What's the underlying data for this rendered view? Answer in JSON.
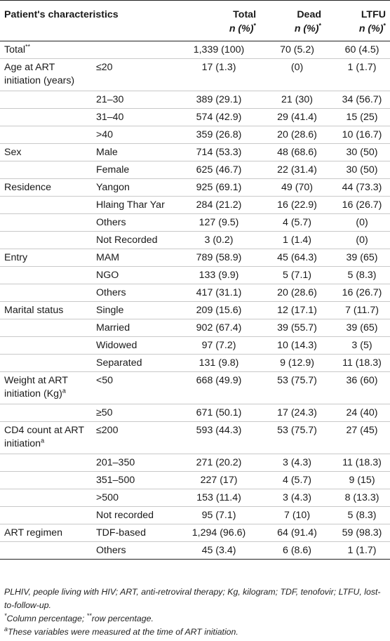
{
  "headers": {
    "characteristics": "Patient's characteristics",
    "total": "Total",
    "dead": "Dead",
    "ltfu": "LTFU",
    "npct": "n (%)",
    "npct_mark": "*"
  },
  "rows": [
    {
      "group": "Total",
      "group_sup": "**",
      "sub": "",
      "total": "1,339 (100)",
      "dead": "70 (5.2)",
      "ltfu": "60 (4.5)"
    },
    {
      "group": "Age at ART initiation (years)",
      "sub": "≤20",
      "total": "17 (1.3)",
      "dead": "(0)",
      "ltfu": "1 (1.7)"
    },
    {
      "group": "",
      "sub": "21–30",
      "total": "389 (29.1)",
      "dead": "21 (30)",
      "ltfu": "34 (56.7)"
    },
    {
      "group": "",
      "sub": "31–40",
      "total": "574 (42.9)",
      "dead": "29 (41.4)",
      "ltfu": "15 (25)"
    },
    {
      "group": "",
      "sub": ">40",
      "total": "359 (26.8)",
      "dead": "20 (28.6)",
      "ltfu": "10 (16.7)"
    },
    {
      "group": "Sex",
      "sub": "Male",
      "total": "714 (53.3)",
      "dead": "48 (68.6)",
      "ltfu": "30 (50)"
    },
    {
      "group": "",
      "sub": "Female",
      "total": "625 (46.7)",
      "dead": "22 (31.4)",
      "ltfu": "30 (50)"
    },
    {
      "group": "Residence",
      "sub": "Yangon",
      "total": "925 (69.1)",
      "dead": "49 (70)",
      "ltfu": "44 (73.3)"
    },
    {
      "group": "",
      "sub": "Hlaing Thar Yar",
      "total": "284 (21.2)",
      "dead": "16 (22.9)",
      "ltfu": "16 (26.7)"
    },
    {
      "group": "",
      "sub": "Others",
      "total": "127 (9.5)",
      "dead": "4 (5.7)",
      "ltfu": "(0)"
    },
    {
      "group": "",
      "sub": "Not Recorded",
      "total": "3 (0.2)",
      "dead": "1 (1.4)",
      "ltfu": "(0)"
    },
    {
      "group": "Entry",
      "sub": "MAM",
      "total": "789 (58.9)",
      "dead": "45 (64.3)",
      "ltfu": "39 (65)"
    },
    {
      "group": "",
      "sub": "NGO",
      "total": "133 (9.9)",
      "dead": "5 (7.1)",
      "ltfu": "5 (8.3)"
    },
    {
      "group": "",
      "sub": "Others",
      "total": "417 (31.1)",
      "dead": "20 (28.6)",
      "ltfu": "16 (26.7)"
    },
    {
      "group": "Marital status",
      "sub": "Single",
      "total": "209 (15.6)",
      "dead": "12 (17.1)",
      "ltfu": "7 (11.7)"
    },
    {
      "group": "",
      "sub": "Married",
      "total": "902 (67.4)",
      "dead": "39 (55.7)",
      "ltfu": "39 (65)"
    },
    {
      "group": "",
      "sub": "Widowed",
      "total": "97 (7.2)",
      "dead": "10 (14.3)",
      "ltfu": "3 (5)"
    },
    {
      "group": "",
      "sub": "Separated",
      "total": "131 (9.8)",
      "dead": "9 (12.9)",
      "ltfu": "11 (18.3)"
    },
    {
      "group": "Weight at ART initiation (Kg)",
      "group_sup": "a",
      "sub": "<50",
      "total": "668 (49.9)",
      "dead": "53 (75.7)",
      "ltfu": "36 (60)"
    },
    {
      "group": "",
      "sub": "≥50",
      "total": "671 (50.1)",
      "dead": "17 (24.3)",
      "ltfu": "24 (40)"
    },
    {
      "group": "CD4 count at ART initiation",
      "group_sup": "a",
      "sub": "≤200",
      "total": "593 (44.3)",
      "dead": "53 (75.7)",
      "ltfu": "27 (45)"
    },
    {
      "group": "",
      "sub": "201–350",
      "total": "271 (20.2)",
      "dead": "3 (4.3)",
      "ltfu": "11 (18.3)"
    },
    {
      "group": "",
      "sub": "351–500",
      "total": "227 (17)",
      "dead": "4 (5.7)",
      "ltfu": "9 (15)"
    },
    {
      "group": "",
      "sub": ">500",
      "total": "153 (11.4)",
      "dead": "3 (4.3)",
      "ltfu": "8 (13.3)"
    },
    {
      "group": "",
      "sub": "Not recorded",
      "total": "95 (7.1)",
      "dead": "7 (10)",
      "ltfu": "5 (8.3)"
    },
    {
      "group": "ART regimen",
      "sub": "TDF-based",
      "total": "1,294 (96.6)",
      "dead": "64 (91.4)",
      "ltfu": "59 (98.3)"
    },
    {
      "group": "",
      "sub": "Others",
      "total": "45 (3.4)",
      "dead": "6 (8.6)",
      "ltfu": "1 (1.7)"
    }
  ],
  "footnotes": {
    "abbrev": "PLHIV, people living with HIV; ART, anti-retroviral therapy; Kg, kilogram; TDF, tenofovir; LTFU, lost-to-follow-up.",
    "pct_mark1": "*",
    "pct_text1": "Column percentage; ",
    "pct_mark2": "**",
    "pct_text2": "row percentage.",
    "a_mark": "a",
    "a_text": "These variables were measured at the time of ART initiation."
  }
}
